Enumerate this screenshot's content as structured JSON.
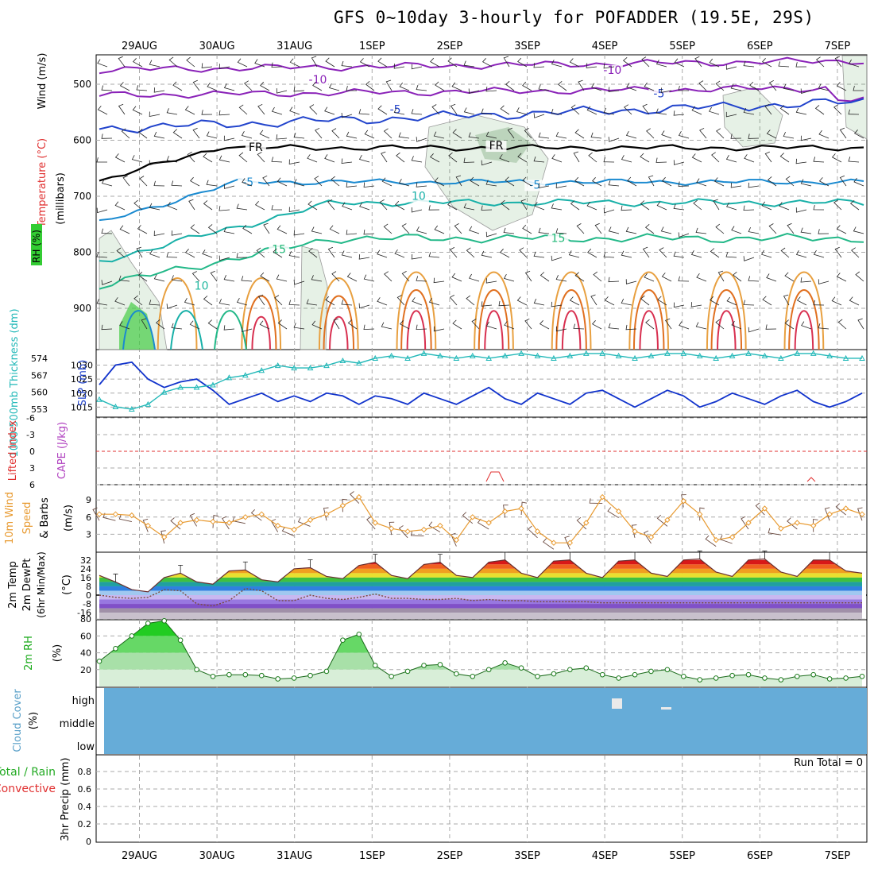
{
  "title": "GFS 0~10day 3-hourly for POFADDER (19.5E, 29S)",
  "colors": {
    "temp_cold": "#2244cc",
    "temp_warm": "#e07010",
    "rh_fill": "#33cc33",
    "cloud": "#66acd8",
    "slp": "#1133cc",
    "thickness": "#22b8b8",
    "wind10": "#e89a30",
    "purple": "#8a22b8"
  },
  "chart_data": [
    {
      "type": "line",
      "panel": "upper_air",
      "ylabel_parts": [
        "Wind (m/s)",
        "Temperature (°C)",
        "RH (%)"
      ],
      "ylabel_units": "(millibars)",
      "y_ticks": [
        500,
        600,
        700,
        800,
        900
      ],
      "x_ticks": [
        "29AUG",
        "30AUG",
        "31AUG",
        "1SEP",
        "2SEP",
        "3SEP",
        "4SEP",
        "5SEP",
        "6SEP",
        "7SEP"
      ],
      "contour_labels": [
        {
          "text": "-10",
          "day": 2.3,
          "p": 497,
          "color": "#8a22b8"
        },
        {
          "text": "-10",
          "day": 6.1,
          "p": 480,
          "color": "#8a22b8"
        },
        {
          "text": "-5",
          "day": 3.3,
          "p": 550,
          "color": "#2244cc"
        },
        {
          "text": "-5",
          "day": 6.7,
          "p": 522,
          "color": "#2244cc"
        },
        {
          "text": "FR",
          "day": 1.5,
          "p": 618,
          "color": "#000000"
        },
        {
          "text": "FR",
          "day": 4.6,
          "p": 615,
          "color": "#000000"
        },
        {
          "text": "-5",
          "day": 1.4,
          "p": 680,
          "color": "#1a8ad0"
        },
        {
          "text": "-5",
          "day": 5.1,
          "p": 685,
          "color": "#1a8ad0"
        },
        {
          "text": "10",
          "day": 3.6,
          "p": 705,
          "color": "#18b0a8"
        },
        {
          "text": "15",
          "day": 1.8,
          "p": 800,
          "color": "#22b878"
        },
        {
          "text": "15",
          "day": 5.4,
          "p": 780,
          "color": "#22b878"
        },
        {
          "text": "10",
          "day": 0.8,
          "p": 865,
          "color": "#22b8a0"
        }
      ]
    },
    {
      "type": "line",
      "panel": "slp_thickness",
      "ylabel_left": "1000-500mb Thickness (dm)",
      "ylabel_right": "SLP (mb)",
      "left_ticks": [
        553,
        560,
        567,
        574
      ],
      "right_ticks": [
        1015,
        1020,
        1025,
        1030
      ],
      "series": [
        {
          "name": "SLP (mb)",
          "values": [
            1023,
            1030,
            1031,
            1025,
            1022,
            1024,
            1025,
            1021,
            1016,
            1018,
            1020,
            1017,
            1019,
            1017,
            1020,
            1019,
            1016,
            1019,
            1018,
            1016,
            1020,
            1018,
            1016,
            1019,
            1022,
            1018,
            1016,
            1020,
            1018,
            1016,
            1020,
            1021,
            1018,
            1015,
            1018,
            1021,
            1019,
            1015,
            1017,
            1020,
            1018,
            1016,
            1019,
            1021,
            1017,
            1015,
            1017,
            1020
          ]
        },
        {
          "name": "1000-500mb Thickness (dm)",
          "values": [
            557,
            554,
            553,
            555,
            560,
            562,
            562,
            563,
            566,
            567,
            569,
            571,
            570,
            570,
            571,
            573,
            572,
            574,
            575,
            574,
            576,
            575,
            574,
            575,
            574,
            575,
            576,
            575,
            574,
            575,
            576,
            576,
            575,
            574,
            575,
            576,
            576,
            575,
            574,
            575,
            576,
            575,
            574,
            576,
            576,
            575,
            574,
            574
          ]
        }
      ]
    },
    {
      "type": "line",
      "panel": "stability",
      "ylabel_left": "Lifted Index",
      "ylabel_right": "CAPE (J/kg)",
      "li_ticks": [
        -6,
        -3,
        0,
        3,
        6
      ],
      "series": []
    },
    {
      "type": "line",
      "panel": "wind10m",
      "ylabel": "10m Wind Speed & Barbs (m/s)",
      "y_ticks": [
        3,
        6,
        9
      ],
      "series": [
        {
          "name": "10m Wind Speed",
          "values": [
            6.5,
            6.5,
            6.3,
            4.5,
            2.5,
            5.0,
            5.5,
            5.2,
            5.0,
            6.0,
            6.5,
            4.5,
            3.8,
            5.5,
            6.5,
            8.0,
            9.5,
            5.0,
            4.0,
            3.5,
            3.8,
            4.5,
            2.0,
            6.0,
            5.0,
            7.0,
            7.5,
            3.5,
            1.5,
            1.5,
            5.0,
            9.5,
            7.0,
            3.5,
            2.5,
            5.5,
            8.8,
            6.5,
            2.0,
            2.5,
            5.0,
            7.5,
            4.0,
            5.0,
            4.5,
            6.5,
            7.5,
            6.5
          ]
        }
      ]
    },
    {
      "type": "area",
      "panel": "temp2m",
      "ylabel": "2m Temp 2m DewPt (6hr Min/Max) (°C)",
      "y_ticks": [
        -16,
        -8,
        0,
        8,
        16,
        24,
        32
      ],
      "series": [
        {
          "name": "2m Temp",
          "values": [
            18,
            12,
            5,
            3,
            16,
            20,
            12,
            10,
            22,
            23,
            14,
            12,
            24,
            25,
            17,
            15,
            27,
            30,
            18,
            15,
            28,
            30,
            18,
            16,
            30,
            32,
            20,
            16,
            31,
            32,
            20,
            16,
            31,
            32,
            20,
            17,
            32,
            33,
            21,
            17,
            32,
            33,
            21,
            17,
            32,
            32,
            22,
            20
          ]
        },
        {
          "name": "2m DewPt",
          "values": [
            0,
            -2,
            -3,
            -2,
            5,
            4,
            -8,
            -10,
            -5,
            6,
            4,
            -5,
            -5,
            0,
            -3,
            -4,
            -2,
            1,
            -3,
            -3,
            -4,
            -4,
            -3,
            -5,
            -4,
            -5,
            -5,
            -6,
            -6,
            -6,
            -6,
            -7,
            -7,
            -7,
            -7,
            -7,
            -7,
            -7,
            -7,
            -7,
            -7,
            -7,
            -7,
            -7,
            -7,
            -7,
            -7,
            -7
          ]
        }
      ]
    },
    {
      "type": "area",
      "panel": "rh2m",
      "ylabel": "2m RH (%)",
      "y_ticks": [
        20,
        40,
        60,
        80
      ],
      "series": [
        {
          "name": "2m RH",
          "values": [
            30,
            45,
            60,
            75,
            78,
            55,
            20,
            12,
            14,
            14,
            13,
            9,
            10,
            13,
            18,
            55,
            62,
            25,
            12,
            18,
            25,
            26,
            15,
            12,
            20,
            28,
            22,
            12,
            15,
            20,
            22,
            14,
            10,
            14,
            18,
            20,
            12,
            8,
            10,
            13,
            14,
            10,
            8,
            12,
            14,
            9,
            10,
            12
          ]
        }
      ]
    },
    {
      "type": "heatmap",
      "panel": "cloud",
      "ylabel": "Cloud Cover (%)",
      "y_ticks": [
        "high",
        "middle",
        "low"
      ]
    },
    {
      "type": "bar",
      "panel": "precip",
      "ylabel": "3hr Precip (mm)",
      "legend_left": [
        "Total / Rain",
        "Convective"
      ],
      "y_ticks": [
        0,
        0.2,
        0.4,
        0.6,
        0.8
      ],
      "annotation": "Run Total = 0",
      "values": []
    }
  ]
}
